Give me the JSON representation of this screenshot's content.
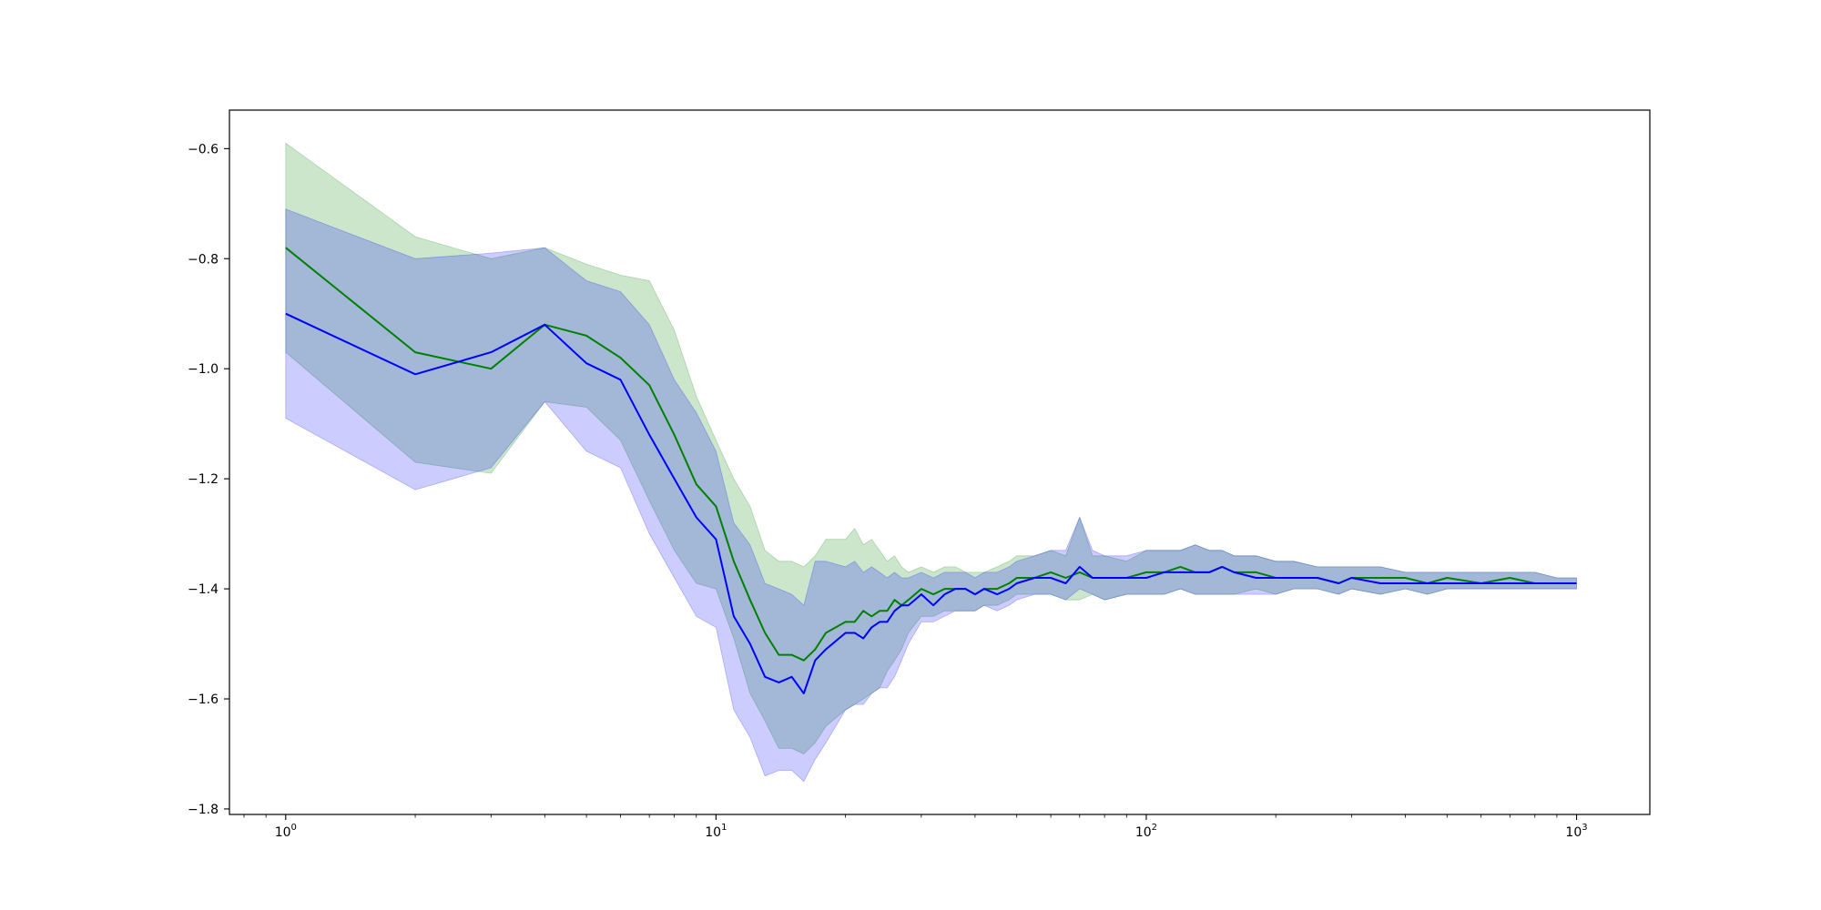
{
  "chart_data": {
    "type": "line",
    "title": "",
    "xlabel": "",
    "ylabel": "",
    "xscale": "log",
    "xlim": [
      0.74,
      1480
    ],
    "ylim": [
      -1.81,
      -0.53
    ],
    "grid": false,
    "legend": "none",
    "x_major_ticks": [
      {
        "value": 1,
        "base": "10",
        "exp": "0"
      },
      {
        "value": 10,
        "base": "10",
        "exp": "1"
      },
      {
        "value": 100,
        "base": "10",
        "exp": "2"
      },
      {
        "value": 1000,
        "base": "10",
        "exp": "3"
      }
    ],
    "y_ticks": [
      {
        "value": -0.6,
        "label": "−0.6"
      },
      {
        "value": -0.8,
        "label": "−0.8"
      },
      {
        "value": -1.0,
        "label": "−1.0"
      },
      {
        "value": -1.2,
        "label": "−1.2"
      },
      {
        "value": -1.4,
        "label": "−1.4"
      },
      {
        "value": -1.6,
        "label": "−1.6"
      },
      {
        "value": -1.8,
        "label": "−1.8"
      }
    ],
    "series": [
      {
        "color": "#008000",
        "band_color": "#008000",
        "band_opacity": 0.2,
        "x": [
          1,
          2,
          3,
          4,
          5,
          6,
          7,
          8,
          9,
          10,
          11,
          12,
          13,
          14,
          15,
          16,
          17,
          18,
          20,
          21,
          22,
          23,
          24,
          25,
          26,
          27,
          28,
          30,
          32,
          34,
          36,
          38,
          40,
          42,
          45,
          48,
          50,
          55,
          60,
          65,
          70,
          75,
          80,
          90,
          100,
          110,
          120,
          130,
          140,
          150,
          160,
          180,
          200,
          220,
          250,
          280,
          300,
          350,
          400,
          450,
          500,
          600,
          700,
          800,
          900,
          1000
        ],
        "mean": [
          -0.78,
          -0.97,
          -1.0,
          -0.92,
          -0.94,
          -0.98,
          -1.03,
          -1.12,
          -1.21,
          -1.25,
          -1.35,
          -1.42,
          -1.48,
          -1.52,
          -1.52,
          -1.53,
          -1.51,
          -1.48,
          -1.46,
          -1.46,
          -1.44,
          -1.45,
          -1.44,
          -1.44,
          -1.42,
          -1.43,
          -1.42,
          -1.4,
          -1.41,
          -1.4,
          -1.4,
          -1.4,
          -1.41,
          -1.4,
          -1.4,
          -1.39,
          -1.38,
          -1.38,
          -1.37,
          -1.38,
          -1.37,
          -1.38,
          -1.38,
          -1.38,
          -1.37,
          -1.37,
          -1.36,
          -1.37,
          -1.37,
          -1.36,
          -1.37,
          -1.37,
          -1.38,
          -1.38,
          -1.38,
          -1.39,
          -1.38,
          -1.38,
          -1.38,
          -1.39,
          -1.38,
          -1.39,
          -1.38,
          -1.39,
          -1.39,
          -1.39
        ],
        "lower": [
          -0.97,
          -1.17,
          -1.19,
          -1.06,
          -1.07,
          -1.13,
          -1.24,
          -1.33,
          -1.39,
          -1.4,
          -1.49,
          -1.59,
          -1.64,
          -1.69,
          -1.69,
          -1.7,
          -1.68,
          -1.65,
          -1.62,
          -1.61,
          -1.6,
          -1.59,
          -1.58,
          -1.55,
          -1.53,
          -1.51,
          -1.48,
          -1.45,
          -1.45,
          -1.44,
          -1.44,
          -1.44,
          -1.44,
          -1.43,
          -1.43,
          -1.42,
          -1.41,
          -1.41,
          -1.41,
          -1.42,
          -1.42,
          -1.41,
          -1.42,
          -1.41,
          -1.41,
          -1.41,
          -1.4,
          -1.41,
          -1.41,
          -1.41,
          -1.41,
          -1.4,
          -1.41,
          -1.4,
          -1.4,
          -1.41,
          -1.4,
          -1.41,
          -1.4,
          -1.41,
          -1.4,
          -1.4,
          -1.4,
          -1.4,
          -1.4,
          -1.4
        ],
        "upper": [
          -0.59,
          -0.76,
          -0.8,
          -0.78,
          -0.81,
          -0.83,
          -0.84,
          -0.93,
          -1.05,
          -1.13,
          -1.2,
          -1.25,
          -1.33,
          -1.35,
          -1.35,
          -1.36,
          -1.34,
          -1.31,
          -1.31,
          -1.29,
          -1.32,
          -1.31,
          -1.33,
          -1.35,
          -1.34,
          -1.36,
          -1.37,
          -1.36,
          -1.37,
          -1.36,
          -1.36,
          -1.37,
          -1.37,
          -1.37,
          -1.36,
          -1.35,
          -1.34,
          -1.34,
          -1.33,
          -1.34,
          -1.27,
          -1.34,
          -1.34,
          -1.35,
          -1.33,
          -1.33,
          -1.33,
          -1.32,
          -1.33,
          -1.33,
          -1.34,
          -1.34,
          -1.35,
          -1.35,
          -1.36,
          -1.36,
          -1.36,
          -1.36,
          -1.37,
          -1.37,
          -1.37,
          -1.37,
          -1.37,
          -1.37,
          -1.38,
          -1.38
        ]
      },
      {
        "color": "#0000ff",
        "band_color": "#0000ff",
        "band_opacity": 0.2,
        "x": [
          1,
          2,
          3,
          4,
          5,
          6,
          7,
          8,
          9,
          10,
          11,
          12,
          13,
          14,
          15,
          16,
          17,
          18,
          20,
          21,
          22,
          23,
          24,
          25,
          26,
          27,
          28,
          30,
          32,
          34,
          36,
          38,
          40,
          42,
          45,
          48,
          50,
          55,
          60,
          65,
          70,
          75,
          80,
          90,
          100,
          110,
          120,
          130,
          140,
          150,
          160,
          180,
          200,
          220,
          250,
          280,
          300,
          350,
          400,
          450,
          500,
          600,
          700,
          800,
          900,
          1000
        ],
        "mean": [
          -0.9,
          -1.01,
          -0.97,
          -0.92,
          -0.99,
          -1.02,
          -1.12,
          -1.2,
          -1.27,
          -1.31,
          -1.45,
          -1.5,
          -1.56,
          -1.57,
          -1.56,
          -1.59,
          -1.53,
          -1.51,
          -1.48,
          -1.48,
          -1.49,
          -1.47,
          -1.46,
          -1.46,
          -1.44,
          -1.43,
          -1.43,
          -1.41,
          -1.43,
          -1.41,
          -1.4,
          -1.4,
          -1.41,
          -1.4,
          -1.41,
          -1.4,
          -1.39,
          -1.38,
          -1.38,
          -1.39,
          -1.36,
          -1.38,
          -1.38,
          -1.38,
          -1.38,
          -1.37,
          -1.37,
          -1.37,
          -1.37,
          -1.36,
          -1.37,
          -1.38,
          -1.38,
          -1.38,
          -1.38,
          -1.39,
          -1.38,
          -1.39,
          -1.39,
          -1.39,
          -1.39,
          -1.39,
          -1.39,
          -1.39,
          -1.39,
          -1.39
        ],
        "lower": [
          -1.09,
          -1.22,
          -1.18,
          -1.06,
          -1.15,
          -1.18,
          -1.3,
          -1.38,
          -1.45,
          -1.47,
          -1.62,
          -1.67,
          -1.74,
          -1.73,
          -1.73,
          -1.75,
          -1.71,
          -1.68,
          -1.62,
          -1.61,
          -1.61,
          -1.59,
          -1.58,
          -1.58,
          -1.56,
          -1.53,
          -1.5,
          -1.46,
          -1.46,
          -1.45,
          -1.44,
          -1.44,
          -1.44,
          -1.43,
          -1.44,
          -1.43,
          -1.42,
          -1.41,
          -1.41,
          -1.42,
          -1.4,
          -1.41,
          -1.42,
          -1.41,
          -1.41,
          -1.41,
          -1.4,
          -1.41,
          -1.41,
          -1.41,
          -1.41,
          -1.41,
          -1.41,
          -1.4,
          -1.4,
          -1.41,
          -1.4,
          -1.41,
          -1.4,
          -1.41,
          -1.4,
          -1.4,
          -1.4,
          -1.4,
          -1.4,
          -1.4
        ],
        "upper": [
          -0.71,
          -0.8,
          -0.79,
          -0.78,
          -0.84,
          -0.86,
          -0.92,
          -1.02,
          -1.08,
          -1.15,
          -1.28,
          -1.32,
          -1.39,
          -1.4,
          -1.41,
          -1.43,
          -1.35,
          -1.35,
          -1.36,
          -1.35,
          -1.37,
          -1.36,
          -1.37,
          -1.38,
          -1.37,
          -1.38,
          -1.38,
          -1.37,
          -1.38,
          -1.37,
          -1.37,
          -1.37,
          -1.38,
          -1.37,
          -1.37,
          -1.36,
          -1.35,
          -1.34,
          -1.33,
          -1.33,
          -1.27,
          -1.33,
          -1.34,
          -1.34,
          -1.33,
          -1.33,
          -1.33,
          -1.32,
          -1.33,
          -1.33,
          -1.34,
          -1.34,
          -1.35,
          -1.35,
          -1.36,
          -1.36,
          -1.36,
          -1.36,
          -1.37,
          -1.37,
          -1.37,
          -1.37,
          -1.37,
          -1.37,
          -1.38,
          -1.38
        ]
      }
    ]
  }
}
